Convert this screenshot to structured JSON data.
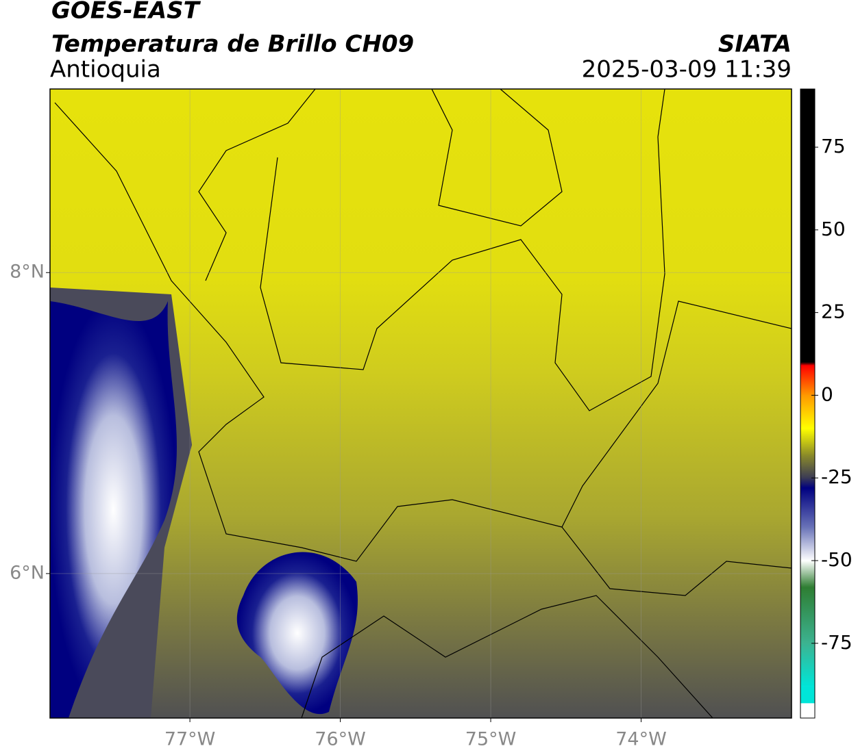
{
  "header": {
    "source": "GOES-EAST",
    "title": "Temperatura de Brillo CH09",
    "region": "Antioquia",
    "agency": "SIATA",
    "datetime": "2025-03-09 11:39"
  },
  "map": {
    "xlim": [
      -77.93,
      -73.0
    ],
    "ylim": [
      5.04,
      9.22
    ],
    "xticks": [
      {
        "value": -77,
        "label": "77°W"
      },
      {
        "value": -76,
        "label": "76°W"
      },
      {
        "value": -75,
        "label": "75°W"
      },
      {
        "value": -74,
        "label": "74°W"
      }
    ],
    "yticks": [
      {
        "value": 8,
        "label": "8°N"
      },
      {
        "value": 6,
        "label": "6°N"
      }
    ],
    "grid": true
  },
  "colorbar": {
    "lim": [
      -97.6,
      92.6
    ],
    "ticks": [
      75,
      50,
      25,
      0,
      -25,
      -50,
      -75
    ],
    "stops": [
      {
        "value": 92.6,
        "color": "#000000"
      },
      {
        "value": 10,
        "color": "#000000"
      },
      {
        "value": 9,
        "color": "#ff0000"
      },
      {
        "value": 0,
        "color": "#ff9900"
      },
      {
        "value": -10,
        "color": "#ffff00"
      },
      {
        "value": -18,
        "color": "#8c8c28"
      },
      {
        "value": -25,
        "color": "#3a3a55"
      },
      {
        "value": -28,
        "color": "#000080"
      },
      {
        "value": -40,
        "color": "#6a74b8"
      },
      {
        "value": -50,
        "color": "#ffffff"
      },
      {
        "value": -58,
        "color": "#2e7d32"
      },
      {
        "value": -75,
        "color": "#3cb391"
      },
      {
        "value": -88,
        "color": "#00e5d8"
      },
      {
        "value": -93,
        "color": "#00e5d8"
      },
      {
        "value": -93.2,
        "color": "#ffffff"
      },
      {
        "value": -97.6,
        "color": "#ffffff"
      }
    ]
  }
}
